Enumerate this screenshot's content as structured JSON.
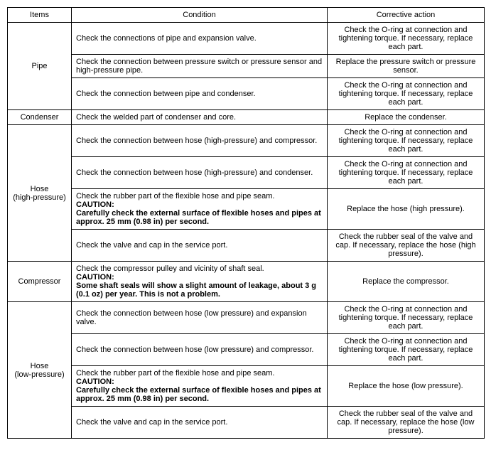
{
  "headers": {
    "items": "Items",
    "condition": "Condition",
    "corrective": "Corrective action"
  },
  "caution_label": "CAUTION:",
  "rows": {
    "pipe": {
      "item": "Pipe",
      "r1": {
        "cond": "Check the connections of pipe and expansion valve.",
        "corr": "Check the O-ring at connection and tightening torque. If necessary, replace each part."
      },
      "r2": {
        "cond": "Check the connection between pressure switch or pressure sensor and high-pressure pipe.",
        "corr": "Replace the pressure switch or pressure sensor."
      },
      "r3": {
        "cond": "Check the connection between pipe and condenser.",
        "corr": "Check the O-ring at connection and tightening torque. If necessary, replace each part."
      }
    },
    "condenser": {
      "item": "Condenser",
      "r1": {
        "cond": "Check the welded part of condenser and core.",
        "corr": "Replace the condenser."
      }
    },
    "hose_hp": {
      "item": "Hose\n(high-pressure)",
      "r1": {
        "cond": "Check the connection between hose (high-pressure) and compressor.",
        "corr": "Check the O-ring at connection and tightening torque. If necessary, replace each part."
      },
      "r2": {
        "cond": "Check the connection between hose (high-pressure) and condenser.",
        "corr": "Check the O-ring at connection and tightening torque. If necessary, replace each part."
      },
      "r3": {
        "cond_pre": "Check the rubber part of the flexible hose and pipe seam.",
        "caution": "Carefully check the external surface of flexible hoses and pipes at approx. 25 mm (0.98 in) per second.",
        "corr": "Replace the hose (high pressure)."
      },
      "r4": {
        "cond": "Check the valve and cap in the service port.",
        "corr": "Check the rubber seal of the valve and cap. If necessary, replace the hose (high pressure)."
      }
    },
    "compressor": {
      "item": "Compressor",
      "r1": {
        "cond_pre": "Check the compressor pulley and vicinity of shaft seal.",
        "caution": "Some shaft seals will show a slight amount of leakage, about 3 g (0.1 oz) per year. This is not a problem.",
        "corr": "Replace the compressor."
      }
    },
    "hose_lp": {
      "item": "Hose\n(low-pressure)",
      "r1": {
        "cond": "Check the connection between hose (low pressure) and expansion valve.",
        "corr": "Check the O-ring at connection and tightening torque. If necessary, replace each part."
      },
      "r2": {
        "cond": "Check the connection between hose (low pressure) and compressor.",
        "corr": "Check the O-ring at connection and tightening torque. If necessary, replace each part."
      },
      "r3": {
        "cond_pre": "Check the rubber part of the flexible hose and pipe seam.",
        "caution": "Carefully check the external surface of flexible hoses and pipes at approx. 25 mm (0.98 in) per second.",
        "corr": "Replace the hose (low pressure)."
      },
      "r4": {
        "cond": "Check the valve and cap in the service port.",
        "corr": "Check the rubber seal of the valve and cap. If necessary, replace the hose (low pressure)."
      }
    }
  }
}
